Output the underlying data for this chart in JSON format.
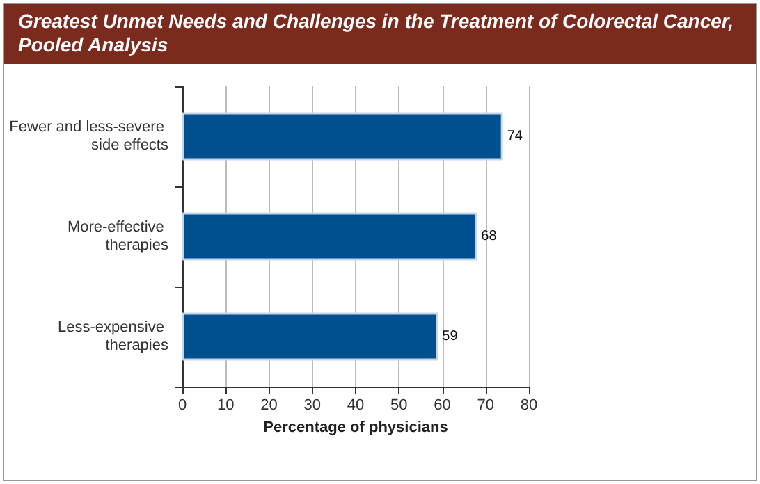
{
  "chart_data": {
    "type": "bar",
    "orientation": "horizontal",
    "title": "Greatest Unmet Needs and Challenges in the Treatment of Colorectal Cancer, Pooled Analysis",
    "xlabel": "Percentage of physicians",
    "categories": [
      "Fewer and less-severe side effects",
      "More-effective therapies",
      "Less-expensive therapies"
    ],
    "values": [
      74,
      68,
      59
    ],
    "color": "#00508f",
    "data_labels": true,
    "xlim": [
      0,
      80
    ],
    "xticks": [
      0,
      10,
      20,
      30,
      40,
      50,
      60,
      70,
      80
    ],
    "grid": "x"
  }
}
